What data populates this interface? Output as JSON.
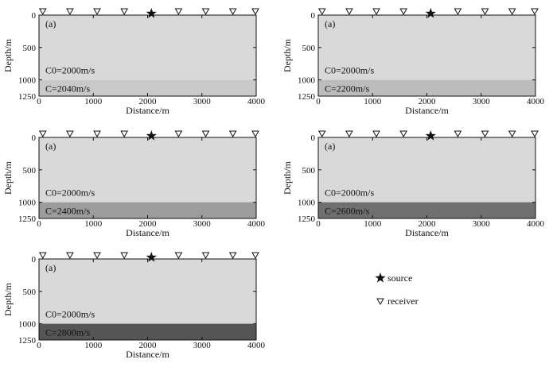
{
  "figure": {
    "legend": {
      "source_label": "source",
      "receiver_label": "receiver"
    }
  },
  "chart_data": [
    {
      "type": "velocity-model",
      "panel_label": "(a)",
      "xlabel": "Distance/m",
      "ylabel": "Depth/m",
      "xlim": [
        0,
        4000
      ],
      "ylim": [
        1250,
        0
      ],
      "xticks": [
        0,
        1000,
        2000,
        3000,
        4000
      ],
      "yticks": [
        0,
        500,
        1000,
        1250
      ],
      "source_x": 2070,
      "receivers_x": [
        70,
        570,
        1070,
        1570,
        2570,
        3070,
        3570,
        4000
      ],
      "interface_depth": 1000,
      "layers": [
        {
          "label": "C0=2000m/s",
          "top": 0,
          "bottom": 1000,
          "color": "#d9d9d9"
        },
        {
          "label": "C=2040m/s",
          "top": 1000,
          "bottom": 1250,
          "color": "#c9c9c9"
        }
      ]
    },
    {
      "type": "velocity-model",
      "panel_label": "(a)",
      "xlabel": "Distance/m",
      "ylabel": "Depth/m",
      "xlim": [
        0,
        4000
      ],
      "ylim": [
        1250,
        0
      ],
      "xticks": [
        0,
        1000,
        2000,
        3000,
        4000
      ],
      "yticks": [
        0,
        500,
        1000,
        1250
      ],
      "source_x": 2070,
      "receivers_x": [
        70,
        570,
        1070,
        1570,
        2570,
        3070,
        3570,
        4000
      ],
      "interface_depth": 1000,
      "layers": [
        {
          "label": "C0=2000m/s",
          "top": 0,
          "bottom": 1000,
          "color": "#d9d9d9"
        },
        {
          "label": "C=2200m/s",
          "top": 1000,
          "bottom": 1250,
          "color": "#bcbcbc"
        }
      ]
    },
    {
      "type": "velocity-model",
      "panel_label": "(a)",
      "xlabel": "Distance/m",
      "ylabel": "Depth/m",
      "xlim": [
        0,
        4000
      ],
      "ylim": [
        1250,
        0
      ],
      "xticks": [
        0,
        1000,
        2000,
        3000,
        4000
      ],
      "yticks": [
        0,
        500,
        1000,
        1250
      ],
      "source_x": 2070,
      "receivers_x": [
        70,
        570,
        1070,
        1570,
        2570,
        3070,
        3570,
        4000
      ],
      "interface_depth": 1000,
      "layers": [
        {
          "label": "C0=2000m/s",
          "top": 0,
          "bottom": 1000,
          "color": "#d9d9d9"
        },
        {
          "label": "C=2400m/s",
          "top": 1000,
          "bottom": 1250,
          "color": "#9c9c9c"
        }
      ]
    },
    {
      "type": "velocity-model",
      "panel_label": "(a)",
      "xlabel": "Distance/m",
      "ylabel": "Depth/m",
      "xlim": [
        0,
        4000
      ],
      "ylim": [
        1250,
        0
      ],
      "xticks": [
        0,
        1000,
        2000,
        3000,
        4000
      ],
      "yticks": [
        0,
        500,
        1000,
        1250
      ],
      "source_x": 2070,
      "receivers_x": [
        70,
        570,
        1070,
        1570,
        2570,
        3070,
        3570,
        4000
      ],
      "interface_depth": 1000,
      "layers": [
        {
          "label": "C0=2000m/s",
          "top": 0,
          "bottom": 1000,
          "color": "#d9d9d9"
        },
        {
          "label": "C=2600m/s",
          "top": 1000,
          "bottom": 1250,
          "color": "#6f6f6f"
        }
      ]
    },
    {
      "type": "velocity-model",
      "panel_label": "(a)",
      "xlabel": "Distance/m",
      "ylabel": "Depth/m",
      "xlim": [
        0,
        4000
      ],
      "ylim": [
        1250,
        0
      ],
      "xticks": [
        0,
        1000,
        2000,
        3000,
        4000
      ],
      "yticks": [
        0,
        500,
        1000,
        1250
      ],
      "source_x": 2070,
      "receivers_x": [
        70,
        570,
        1070,
        1570,
        2570,
        3070,
        3570,
        4000
      ],
      "interface_depth": 1000,
      "layers": [
        {
          "label": "C0=2000m/s",
          "top": 0,
          "bottom": 1000,
          "color": "#d9d9d9"
        },
        {
          "label": "C=2800m/s",
          "top": 1000,
          "bottom": 1250,
          "color": "#555555"
        }
      ]
    }
  ]
}
